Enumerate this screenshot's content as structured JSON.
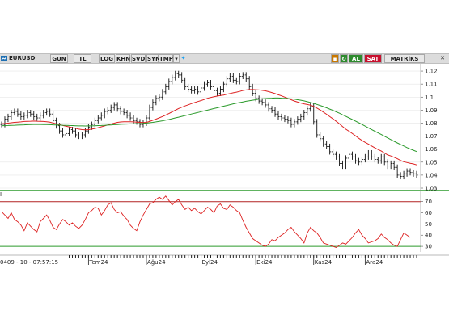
{
  "toolbar": {
    "symbol": "EURUSD",
    "buttons": [
      "GUN",
      "TL",
      "LOG",
      "KHN",
      "SVD",
      "SYM",
      "TMP"
    ],
    "al": "AL",
    "sat": "SAT",
    "brand": "MATRiKS"
  },
  "footer": {
    "timestamp": "0409 - 10 - 07:57:15"
  },
  "rsi_panel_label": "I",
  "chart_data": [
    {
      "type": "line",
      "ylim": [
        1.03,
        1.125
      ],
      "yticks": [
        1.03,
        1.04,
        1.05,
        1.06,
        1.07,
        1.08,
        1.09,
        1.1,
        1.11,
        1.12
      ],
      "ytick_labels": [
        "1.03",
        "1.04",
        "1.05",
        "1.06",
        "1.07",
        "1.08",
        "1.09",
        "1.1",
        "1.11",
        "1.12"
      ],
      "x_labels": [
        {
          "index": 27,
          "label": "Tem24"
        },
        {
          "index": 45,
          "label": "Ağu24"
        },
        {
          "index": 62,
          "label": "Eyl24"
        },
        {
          "index": 79,
          "label": "Eki24"
        },
        {
          "index": 97,
          "label": "Kas24"
        },
        {
          "index": 113,
          "label": "Ara24"
        }
      ],
      "series": [
        {
          "color": "#111111",
          "values": [
            1.079,
            1.083,
            1.085,
            1.088,
            1.089,
            1.087,
            1.085,
            1.086,
            1.088,
            1.087,
            1.085,
            1.084,
            1.086,
            1.088,
            1.089,
            1.087,
            1.082,
            1.078,
            1.074,
            1.071,
            1.072,
            1.075,
            1.074,
            1.071,
            1.07,
            1.071,
            1.074,
            1.077,
            1.079,
            1.082,
            1.084,
            1.086,
            1.089,
            1.09,
            1.092,
            1.094,
            1.091,
            1.089,
            1.088,
            1.086,
            1.084,
            1.082,
            1.081,
            1.079,
            1.08,
            1.084,
            1.092,
            1.096,
            1.099,
            1.1,
            1.104,
            1.108,
            1.112,
            1.115,
            1.118,
            1.117,
            1.113,
            1.108,
            1.106,
            1.105,
            1.106,
            1.104,
            1.107,
            1.11,
            1.111,
            1.108,
            1.105,
            1.103,
            1.106,
            1.11,
            1.114,
            1.116,
            1.113,
            1.112,
            1.116,
            1.117,
            1.114,
            1.108,
            1.103,
            1.099,
            1.097,
            1.096,
            1.094,
            1.091,
            1.09,
            1.087,
            1.085,
            1.084,
            1.083,
            1.082,
            1.079,
            1.081,
            1.083,
            1.085,
            1.088,
            1.091,
            1.093,
            1.081,
            1.071,
            1.068,
            1.064,
            1.062,
            1.058,
            1.056,
            1.054,
            1.049,
            1.047,
            1.053,
            1.056,
            1.054,
            1.051,
            1.05,
            1.052,
            1.054,
            1.057,
            1.054,
            1.052,
            1.051,
            1.054,
            1.05,
            1.047,
            1.049,
            1.046,
            1.04,
            1.039,
            1.041,
            1.043,
            1.042,
            1.041,
            1.04
          ]
        },
        {
          "color": "#dd2222",
          "values": [
            1.0795,
            1.0797,
            1.08,
            1.0803,
            1.0806,
            1.0808,
            1.081,
            1.0813,
            1.0814,
            1.0815,
            1.0816,
            1.0815,
            1.0814,
            1.0813,
            1.0811,
            1.0807,
            1.0801,
            1.0795,
            1.0789,
            1.0782,
            1.0776,
            1.0771,
            1.0765,
            1.076,
            1.0754,
            1.075,
            1.0749,
            1.075,
            1.0754,
            1.0759,
            1.0765,
            1.0772,
            1.0779,
            1.0786,
            1.0793,
            1.08,
            1.0806,
            1.0809,
            1.0811,
            1.0811,
            1.0811,
            1.081,
            1.0808,
            1.0806,
            1.0804,
            1.0806,
            1.0813,
            1.0822,
            1.0831,
            1.0841,
            1.0851,
            1.0862,
            1.0874,
            1.0887,
            1.0899,
            1.0912,
            1.0922,
            1.0932,
            1.0941,
            1.095,
            1.0958,
            1.0966,
            1.0974,
            1.0982,
            1.0991,
            1.0997,
            1.1003,
            1.1008,
            1.1012,
            1.1016,
            1.1022,
            1.1028,
            1.1033,
            1.1038,
            1.1044,
            1.1051,
            1.1055,
            1.1058,
            1.1058,
            1.1057,
            1.1055,
            1.1052,
            1.1048,
            1.1042,
            1.1035,
            1.1027,
            1.1018,
            1.101,
            1.1,
            1.099,
            1.098,
            1.097,
            1.0962,
            1.0954,
            1.0948,
            1.0943,
            1.0938,
            1.0929,
            1.0916,
            1.0901,
            1.0885,
            1.0868,
            1.085,
            1.0833,
            1.0814,
            1.0794,
            1.0773,
            1.0753,
            1.0737,
            1.072,
            1.0703,
            1.0684,
            1.0667,
            1.0652,
            1.0639,
            1.0624,
            1.061,
            1.0597,
            1.0585,
            1.057,
            1.0555,
            1.0547,
            1.0537,
            1.0526,
            1.0513,
            1.0503,
            1.0497,
            1.0491,
            1.0486,
            1.0479
          ]
        },
        {
          "color": "#2b9a2b",
          "values": [
            1.078,
            1.0781,
            1.0782,
            1.0783,
            1.0784,
            1.0785,
            1.0786,
            1.0787,
            1.0788,
            1.0789,
            1.079,
            1.079,
            1.079,
            1.0789,
            1.0789,
            1.0788,
            1.0787,
            1.0786,
            1.0785,
            1.0784,
            1.0783,
            1.0782,
            1.0781,
            1.078,
            1.0779,
            1.0779,
            1.0778,
            1.0779,
            1.0779,
            1.078,
            1.0781,
            1.0782,
            1.0783,
            1.0785,
            1.0786,
            1.0788,
            1.0789,
            1.0791,
            1.0792,
            1.0793,
            1.0794,
            1.0795,
            1.0796,
            1.0797,
            1.0798,
            1.08,
            1.0803,
            1.0806,
            1.081,
            1.0814,
            1.0818,
            1.0823,
            1.0828,
            1.0834,
            1.084,
            1.0846,
            1.0852,
            1.0858,
            1.0864,
            1.087,
            1.0876,
            1.0882,
            1.0888,
            1.0894,
            1.09,
            1.0906,
            1.0912,
            1.0918,
            1.0924,
            1.093,
            1.0936,
            1.0942,
            1.0948,
            1.0953,
            1.0958,
            1.0963,
            1.0968,
            1.0972,
            1.0976,
            1.098,
            1.0984,
            1.0987,
            1.0989,
            1.0991,
            1.0992,
            1.0993,
            1.0993,
            1.0992,
            1.0991,
            1.0989,
            1.0987,
            1.0984,
            1.098,
            1.0976,
            1.0971,
            1.0965,
            1.0959,
            1.0952,
            1.0944,
            1.0936,
            1.0927,
            1.0918,
            1.0908,
            1.0898,
            1.0887,
            1.0876,
            1.0864,
            1.0852,
            1.084,
            1.0828,
            1.0816,
            1.0803,
            1.079,
            1.0777,
            1.0764,
            1.0751,
            1.0738,
            1.0725,
            1.0712,
            1.0699,
            1.0686,
            1.0673,
            1.066,
            1.0648,
            1.0636,
            1.0624,
            1.0612,
            1.0601,
            1.0591,
            1.0581
          ]
        }
      ]
    },
    {
      "type": "line",
      "ylim": [
        25,
        77
      ],
      "yticks": [
        30,
        40,
        50,
        60,
        70
      ],
      "ytick_labels": [
        "30",
        "40",
        "50",
        "60",
        "70"
      ],
      "reference_lines": [
        70,
        30
      ],
      "series": [
        {
          "color": "#dd2222",
          "values": [
            61,
            58,
            55,
            60,
            54,
            52,
            49,
            44,
            51,
            48,
            45,
            43,
            52,
            55,
            58,
            53,
            47,
            45,
            50,
            54,
            52,
            49,
            51,
            48,
            46,
            49,
            54,
            60,
            62,
            65,
            64,
            58,
            62,
            67,
            69,
            63,
            60,
            61,
            57,
            54,
            49,
            46,
            44,
            52,
            58,
            63,
            68,
            69,
            72,
            74,
            72,
            75,
            71,
            67,
            70,
            72,
            67,
            63,
            65,
            62,
            64,
            61,
            59,
            62,
            65,
            63,
            60,
            66,
            68,
            64,
            63,
            67,
            65,
            62,
            60,
            53,
            47,
            42,
            37,
            35,
            33,
            31,
            30,
            32,
            36,
            35,
            38,
            40,
            42,
            45,
            47,
            43,
            40,
            37,
            33,
            42,
            47,
            44,
            42,
            38,
            33,
            32,
            31,
            30,
            29,
            31,
            33,
            32,
            35,
            38,
            42,
            45,
            40,
            37,
            33,
            34,
            35,
            37,
            41,
            38,
            36,
            33,
            31,
            30,
            36,
            42,
            40,
            38
          ]
        }
      ]
    }
  ]
}
